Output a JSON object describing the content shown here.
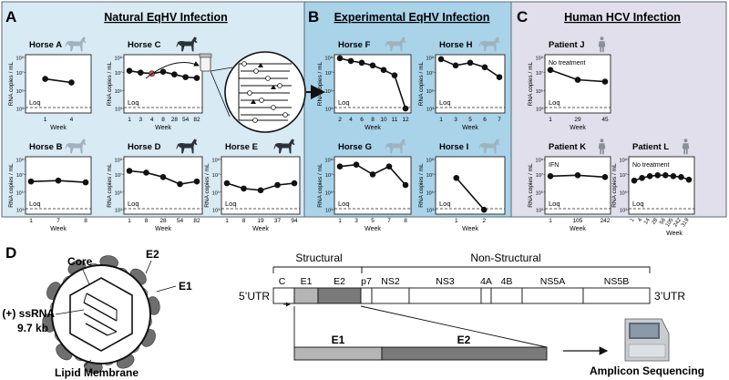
{
  "colors": {
    "natural_bg": "#d8eaf4",
    "experimental_bg": "#a9d3e9",
    "human_bg": "#e2dfec",
    "line": "#111111",
    "horse_light": "#9fb3bf",
    "horse_dark": "#2b3238",
    "human_icon": "#8a8f99",
    "e1": "#b5b5b5",
    "e2": "#7a7a7a",
    "highlight": "#d9534f"
  },
  "panels": {
    "A": {
      "letter": "A",
      "title": "Natural EqHV Infection"
    },
    "B": {
      "letter": "B",
      "title": "Experimental EqHV Infection"
    },
    "C": {
      "letter": "C",
      "title": "Human HCV Infection"
    }
  },
  "axis": {
    "ylabel": "RNA copies / mL",
    "xlabel": "Week",
    "y_ticks": [
      "10⁹",
      "10⁷",
      "10⁵",
      "10³"
    ],
    "loq": "Loq"
  },
  "charts": [
    {
      "name": "Horse A",
      "icon": "horse-light",
      "x": [
        "1",
        "4"
      ],
      "y": [
        6.3,
        5.9
      ],
      "note": ""
    },
    {
      "name": "Horse C",
      "icon": "horse-dark",
      "x": [
        "1",
        "3",
        "4",
        "8",
        "28",
        "54",
        "82"
      ],
      "y": [
        7.2,
        7.0,
        6.9,
        7.1,
        6.8,
        6.5,
        6.4
      ],
      "note": ""
    },
    {
      "name": "Horse B",
      "icon": "horse-light",
      "x": [
        "1",
        "7",
        "8"
      ],
      "y": [
        6.2,
        6.3,
        6.1
      ],
      "note": ""
    },
    {
      "name": "Horse D",
      "icon": "horse-dark",
      "x": [
        "1",
        "8",
        "28",
        "54",
        "82"
      ],
      "y": [
        7.4,
        7.2,
        6.7,
        5.9,
        6.2
      ],
      "note": ""
    },
    {
      "name": "Horse E",
      "icon": "horse-dark",
      "x": [
        "1",
        "8",
        "19",
        "37",
        "94"
      ],
      "y": [
        6.0,
        5.4,
        5.2,
        5.8,
        6.0
      ],
      "note": ""
    },
    {
      "name": "Horse F",
      "icon": "horse-light",
      "x": [
        "2",
        "4",
        "6",
        "8",
        "10",
        "11",
        "12"
      ],
      "y": [
        8.6,
        8.3,
        8.1,
        7.8,
        7.3,
        6.7,
        3.0
      ],
      "note": ""
    },
    {
      "name": "Horse H",
      "icon": "horse-light",
      "x": [
        "1",
        "3",
        "5",
        "6",
        "7"
      ],
      "y": [
        8.5,
        7.8,
        8.1,
        7.6,
        6.5
      ],
      "note": ""
    },
    {
      "name": "Horse G",
      "icon": "horse-light",
      "x": [
        "1",
        "3",
        "5",
        "7",
        "8"
      ],
      "y": [
        7.9,
        8.1,
        7.0,
        7.9,
        5.8
      ],
      "note": ""
    },
    {
      "name": "Horse I",
      "icon": "horse-light",
      "x": [
        "1",
        "2"
      ],
      "y": [
        6.6,
        3.0
      ],
      "note": ""
    },
    {
      "name": "Patient J",
      "icon": "human",
      "x": [
        "1",
        "29",
        "45"
      ],
      "y": [
        7.3,
        6.2,
        6.0
      ],
      "note": "No treatment"
    },
    {
      "name": "Patient K",
      "icon": "human",
      "x": [
        "1",
        "105",
        "242"
      ],
      "y": [
        6.8,
        6.9,
        6.7
      ],
      "note": "IFN"
    },
    {
      "name": "Patient L",
      "icon": "human",
      "x": [
        "1",
        "4",
        "14",
        "28",
        "56",
        "105",
        "242",
        "319"
      ],
      "y": [
        6.3,
        6.6,
        6.8,
        6.9,
        6.9,
        6.8,
        6.7,
        6.4
      ],
      "note": "No treatment"
    }
  ],
  "panel_d": {
    "letter": "D",
    "virion_labels": {
      "core": "Core",
      "e2": "E2",
      "e1": "E1",
      "rna": "(+) ssRNA",
      "size": "9.7 kb",
      "membrane": "Lipid Membrane"
    },
    "structural": "Structural",
    "nonstructural": "Non-Structural",
    "utr5": "5’UTR",
    "utr3": "3’UTR",
    "genes": [
      {
        "label": "C",
        "fill": "white"
      },
      {
        "label": "E1",
        "fill": "e1"
      },
      {
        "label": "E2",
        "fill": "e2"
      },
      {
        "label": "p7",
        "fill": "white"
      },
      {
        "label": "NS2",
        "fill": "white"
      },
      {
        "label": "NS3",
        "fill": "white"
      },
      {
        "label": "4A",
        "fill": "white"
      },
      {
        "label": "4B",
        "fill": "white"
      },
      {
        "label": "NS5A",
        "fill": "white"
      },
      {
        "label": "NS5B",
        "fill": "white"
      }
    ],
    "zoom_labels": {
      "e1": "E1",
      "e2": "E2"
    },
    "sequencing": "Amplicon Sequencing"
  }
}
